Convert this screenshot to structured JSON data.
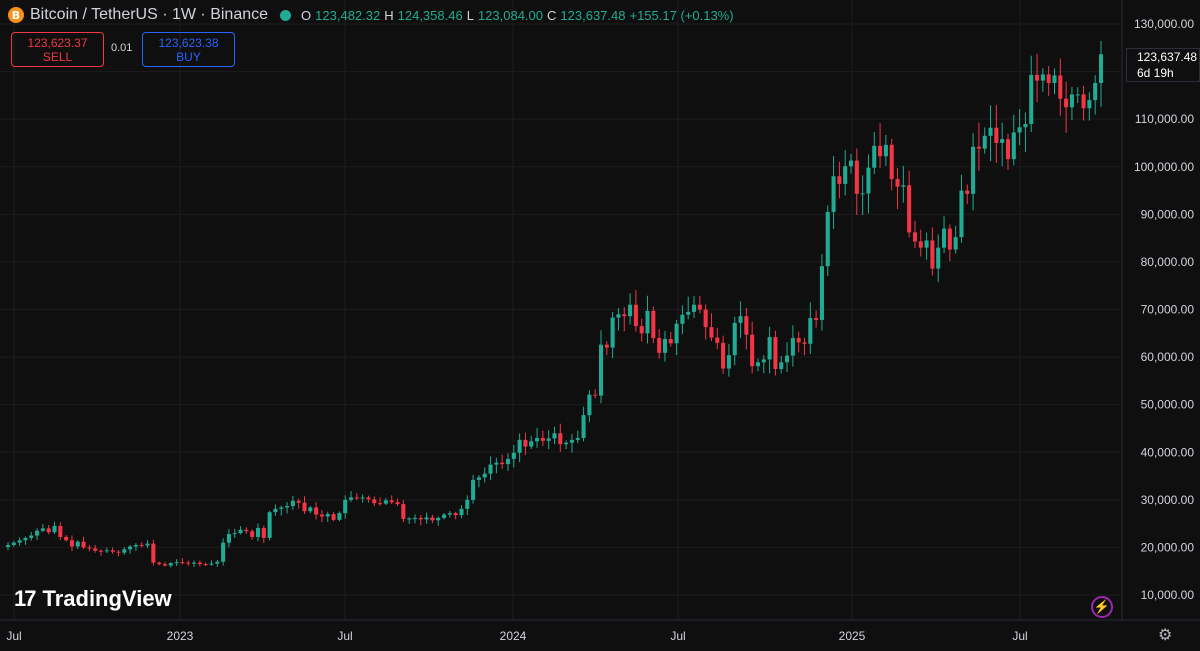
{
  "header": {
    "symbol_icon": "B",
    "title": "Bitcoin / TetherUS · 1W · Binance",
    "o_label": "O",
    "o": "123,482.32",
    "h_label": "H",
    "h": "124,358.46",
    "l_label": "L",
    "l": "123,084.00",
    "c_label": "C",
    "c": "123,637.48",
    "change": "+155.17 (+0.13%)"
  },
  "trade": {
    "sell_price": "123,623.37",
    "sell_label": "SELL",
    "spread": "0.01",
    "buy_price": "123,623.38",
    "buy_label": "BUY"
  },
  "last_price": {
    "price": "123,637.48",
    "countdown": "6d 19h"
  },
  "logo_text": "TradingView",
  "icons": {
    "bolt": "lightning-icon",
    "settings": "gear-icon"
  },
  "colors": {
    "up": "#22ab94",
    "down": "#f23645",
    "background": "#0f0f0f",
    "grid": "#1c1c1c"
  },
  "chart_data": {
    "type": "candlestick",
    "title": "Bitcoin / TetherUS · 1W · Binance",
    "ylim": [
      5000,
      133000
    ],
    "yticks": [
      "130,000.00",
      "120,000.00",
      "110,000.00",
      "100,000.00",
      "90,000.00",
      "80,000.00",
      "70,000.00",
      "60,000.00",
      "50,000.00",
      "40,000.00",
      "30,000.00",
      "20,000.00",
      "10,000.00"
    ],
    "ytick_values": [
      130000,
      120000,
      110000,
      100000,
      90000,
      80000,
      70000,
      60000,
      50000,
      40000,
      30000,
      20000,
      10000
    ],
    "xticks": [
      "Jul",
      "2023",
      "Jul",
      "2024",
      "Jul",
      "2025",
      "Jul"
    ],
    "grid": true,
    "closes": [
      20500,
      21000,
      21500,
      22000,
      22500,
      23500,
      24000,
      23200,
      24500,
      22200,
      21500,
      20200,
      21200,
      20000,
      19800,
      19300,
      19200,
      19400,
      19100,
      18900,
      19600,
      20200,
      20500,
      20400,
      20800,
      16800,
      16500,
      16200,
      16700,
      16900,
      16800,
      16600,
      16800,
      16500,
      16400,
      16600,
      17000,
      21000,
      22800,
      23000,
      23700,
      23400,
      22200,
      24100,
      22000,
      27400,
      28100,
      28400,
      28700,
      29800,
      29400,
      27600,
      28400,
      26900,
      26500,
      27000,
      25800,
      27200,
      30000,
      30500,
      30300,
      30500,
      30100,
      29300,
      29200,
      29900,
      29500,
      29100,
      26000,
      26100,
      26200,
      25900,
      26300,
      25700,
      26200,
      26900,
      27200,
      26800,
      28100,
      30000,
      34200,
      34700,
      35500,
      37400,
      37800,
      37500,
      38600,
      39900,
      42600,
      41200,
      42300,
      43000,
      42400,
      42900,
      44000,
      41700,
      42000,
      42600,
      43000,
      47800,
      52100,
      51900,
      62600,
      62000,
      68300,
      69000,
      68600,
      71000,
      66500,
      65000,
      69700,
      64000,
      60900,
      63800,
      62900,
      67000,
      68900,
      69500,
      71000,
      70000,
      66300,
      64100,
      63000,
      57600,
      60400,
      67200,
      68600,
      64700,
      58100,
      58900,
      59500,
      64200,
      57500,
      58900,
      60300,
      64000,
      63100,
      62800,
      68200,
      67800,
      79100,
      90500,
      98000,
      96400,
      100100,
      101300,
      94300,
      94400,
      99800,
      104400,
      102200,
      104600,
      97400,
      95800,
      96100,
      86200,
      84300,
      83000,
      84500,
      78600,
      83000,
      87000,
      82600,
      85200,
      95000,
      94300,
      104200,
      103800,
      106500,
      108200,
      105000,
      105800,
      101600,
      107200,
      108300,
      109000,
      119300,
      118100,
      119400,
      117600,
      119200,
      114300,
      112500,
      115200,
      115200,
      112300,
      114000,
      117600,
      123637
    ]
  }
}
